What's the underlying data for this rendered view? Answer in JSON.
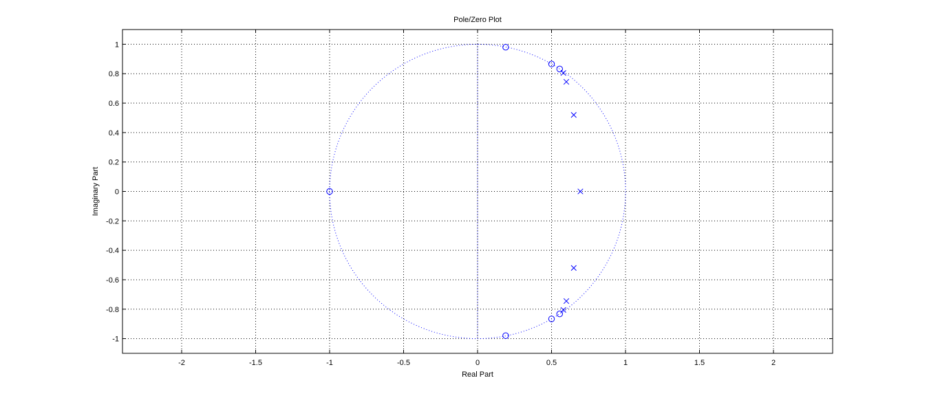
{
  "chart_data": {
    "type": "scatter",
    "title": "Pole/Zero Plot",
    "xlabel": "Real Part",
    "ylabel": "Imaginary Part",
    "xlim": [
      -2.4,
      2.4
    ],
    "ylim": [
      -1.1,
      1.1
    ],
    "xticks": [
      -2,
      -1.5,
      -1,
      -0.5,
      0,
      0.5,
      1,
      1.5,
      2
    ],
    "xtick_labels": [
      "-2",
      "-1.5",
      "-1",
      "-0.5",
      "0",
      "0.5",
      "1",
      "1.5",
      "2"
    ],
    "yticks": [
      -1,
      -0.8,
      -0.6,
      -0.4,
      -0.2,
      0,
      0.2,
      0.4,
      0.6,
      0.8,
      1
    ],
    "ytick_labels": [
      "-1",
      "-0.8",
      "-0.6",
      "-0.4",
      "-0.2",
      "0",
      "0.2",
      "0.4",
      "0.6",
      "0.8",
      "1"
    ],
    "grid": true,
    "unit_circle": true,
    "color": "#0000ff",
    "zeros": [
      {
        "x": -1.0,
        "y": 0.0
      },
      {
        "x": 0.19,
        "y": 0.98
      },
      {
        "x": 0.5,
        "y": 0.866
      },
      {
        "x": 0.555,
        "y": 0.832
      },
      {
        "x": 0.19,
        "y": -0.98
      },
      {
        "x": 0.5,
        "y": -0.866
      },
      {
        "x": 0.555,
        "y": -0.832
      }
    ],
    "poles": [
      {
        "x": 0.58,
        "y": 0.805
      },
      {
        "x": 0.6,
        "y": 0.745
      },
      {
        "x": 0.65,
        "y": 0.52
      },
      {
        "x": 0.695,
        "y": 0.0
      },
      {
        "x": 0.65,
        "y": -0.52
      },
      {
        "x": 0.6,
        "y": -0.745
      },
      {
        "x": 0.58,
        "y": -0.805
      }
    ]
  }
}
